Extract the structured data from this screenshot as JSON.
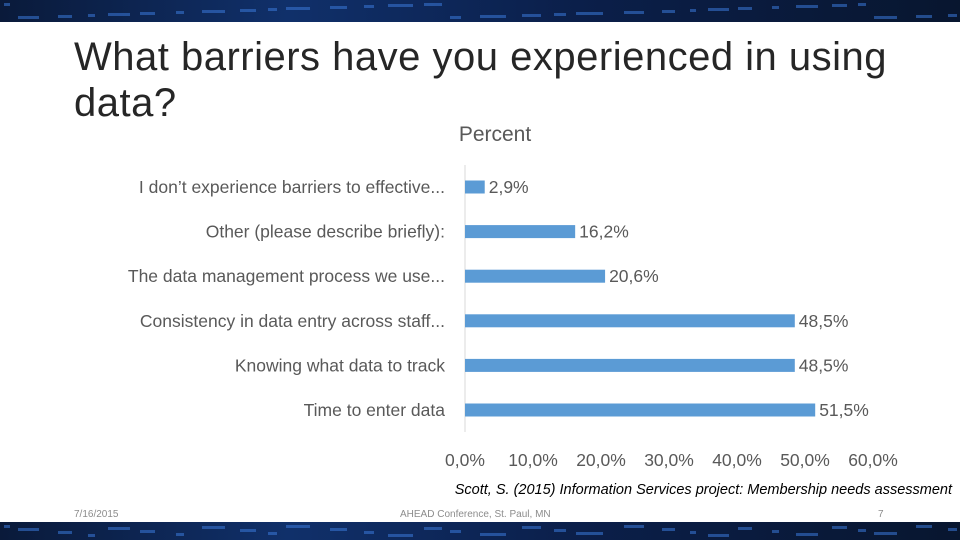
{
  "slide": {
    "title": "What barriers have you experienced in using data?",
    "citation": "Scott, S. (2015) Information Services project: Membership needs assessment",
    "footer": {
      "date": "7/16/2015",
      "center": "AHEAD Conference, St. Paul, MN",
      "page": "7"
    }
  },
  "chart_data": {
    "type": "bar",
    "orientation": "horizontal",
    "title": "Percent",
    "categories": [
      "I don’t experience barriers to effective...",
      "Other (please describe briefly):",
      "The data management process we use...",
      "Consistency in data entry across staff...",
      "Knowing what data to track",
      "Time to enter data"
    ],
    "values": [
      2.9,
      16.2,
      20.6,
      48.5,
      48.5,
      51.5
    ],
    "value_labels": [
      "2,9%",
      "16,2%",
      "20,6%",
      "48,5%",
      "48,5%",
      "51,5%"
    ],
    "x_ticks": [
      "0,0%",
      "10,0%",
      "20,0%",
      "30,0%",
      "40,0%",
      "50,0%",
      "60,0%"
    ],
    "xlim": [
      0,
      60
    ],
    "grid": false,
    "legend": "none",
    "bar_color": "#5b9bd5"
  }
}
